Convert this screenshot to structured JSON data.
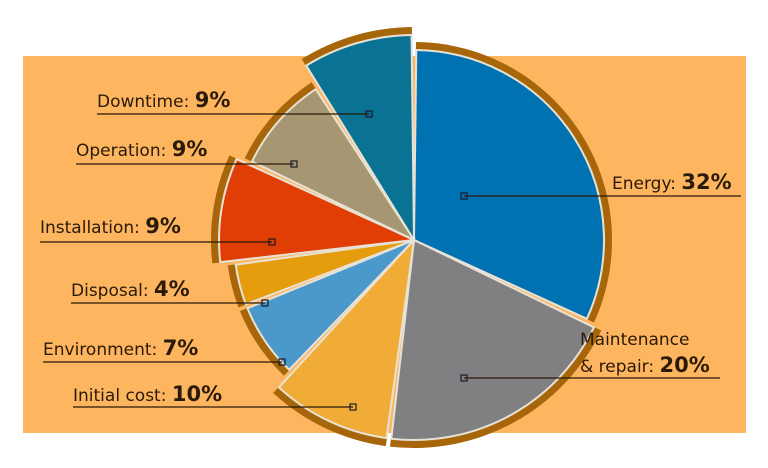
{
  "panel": {
    "color": "#fdb55f"
  },
  "chart_data": {
    "type": "pie",
    "title": "",
    "categories": [
      "Energy",
      "Maintenance & repair",
      "Initial cost",
      "Environment",
      "Disposal",
      "Installation",
      "Operation",
      "Downtime"
    ],
    "values": [
      32,
      20,
      10,
      7,
      4,
      9,
      9,
      9
    ],
    "unit": "%",
    "colors": [
      "#0072b2",
      "#808083",
      "#f1ac37",
      "#4b98ca",
      "#e59c0d",
      "#e03e05",
      "#a69672",
      "#0a7292"
    ],
    "rim_color": "#a8660a",
    "legend": "none (labels with leader lines)",
    "labels": [
      {
        "name": "Energy:",
        "pct": "32%"
      },
      {
        "name": "Maintenance",
        "name2": "& repair:",
        "pct": "20%"
      },
      {
        "name": "Initial cost:",
        "pct": "10%"
      },
      {
        "name": "Environment:",
        "pct": "7%"
      },
      {
        "name": "Disposal:",
        "pct": "4%"
      },
      {
        "name": "Installation:",
        "pct": "9%"
      },
      {
        "name": "Operation:",
        "pct": "9%"
      },
      {
        "name": "Downtime:",
        "pct": "9%"
      }
    ]
  }
}
